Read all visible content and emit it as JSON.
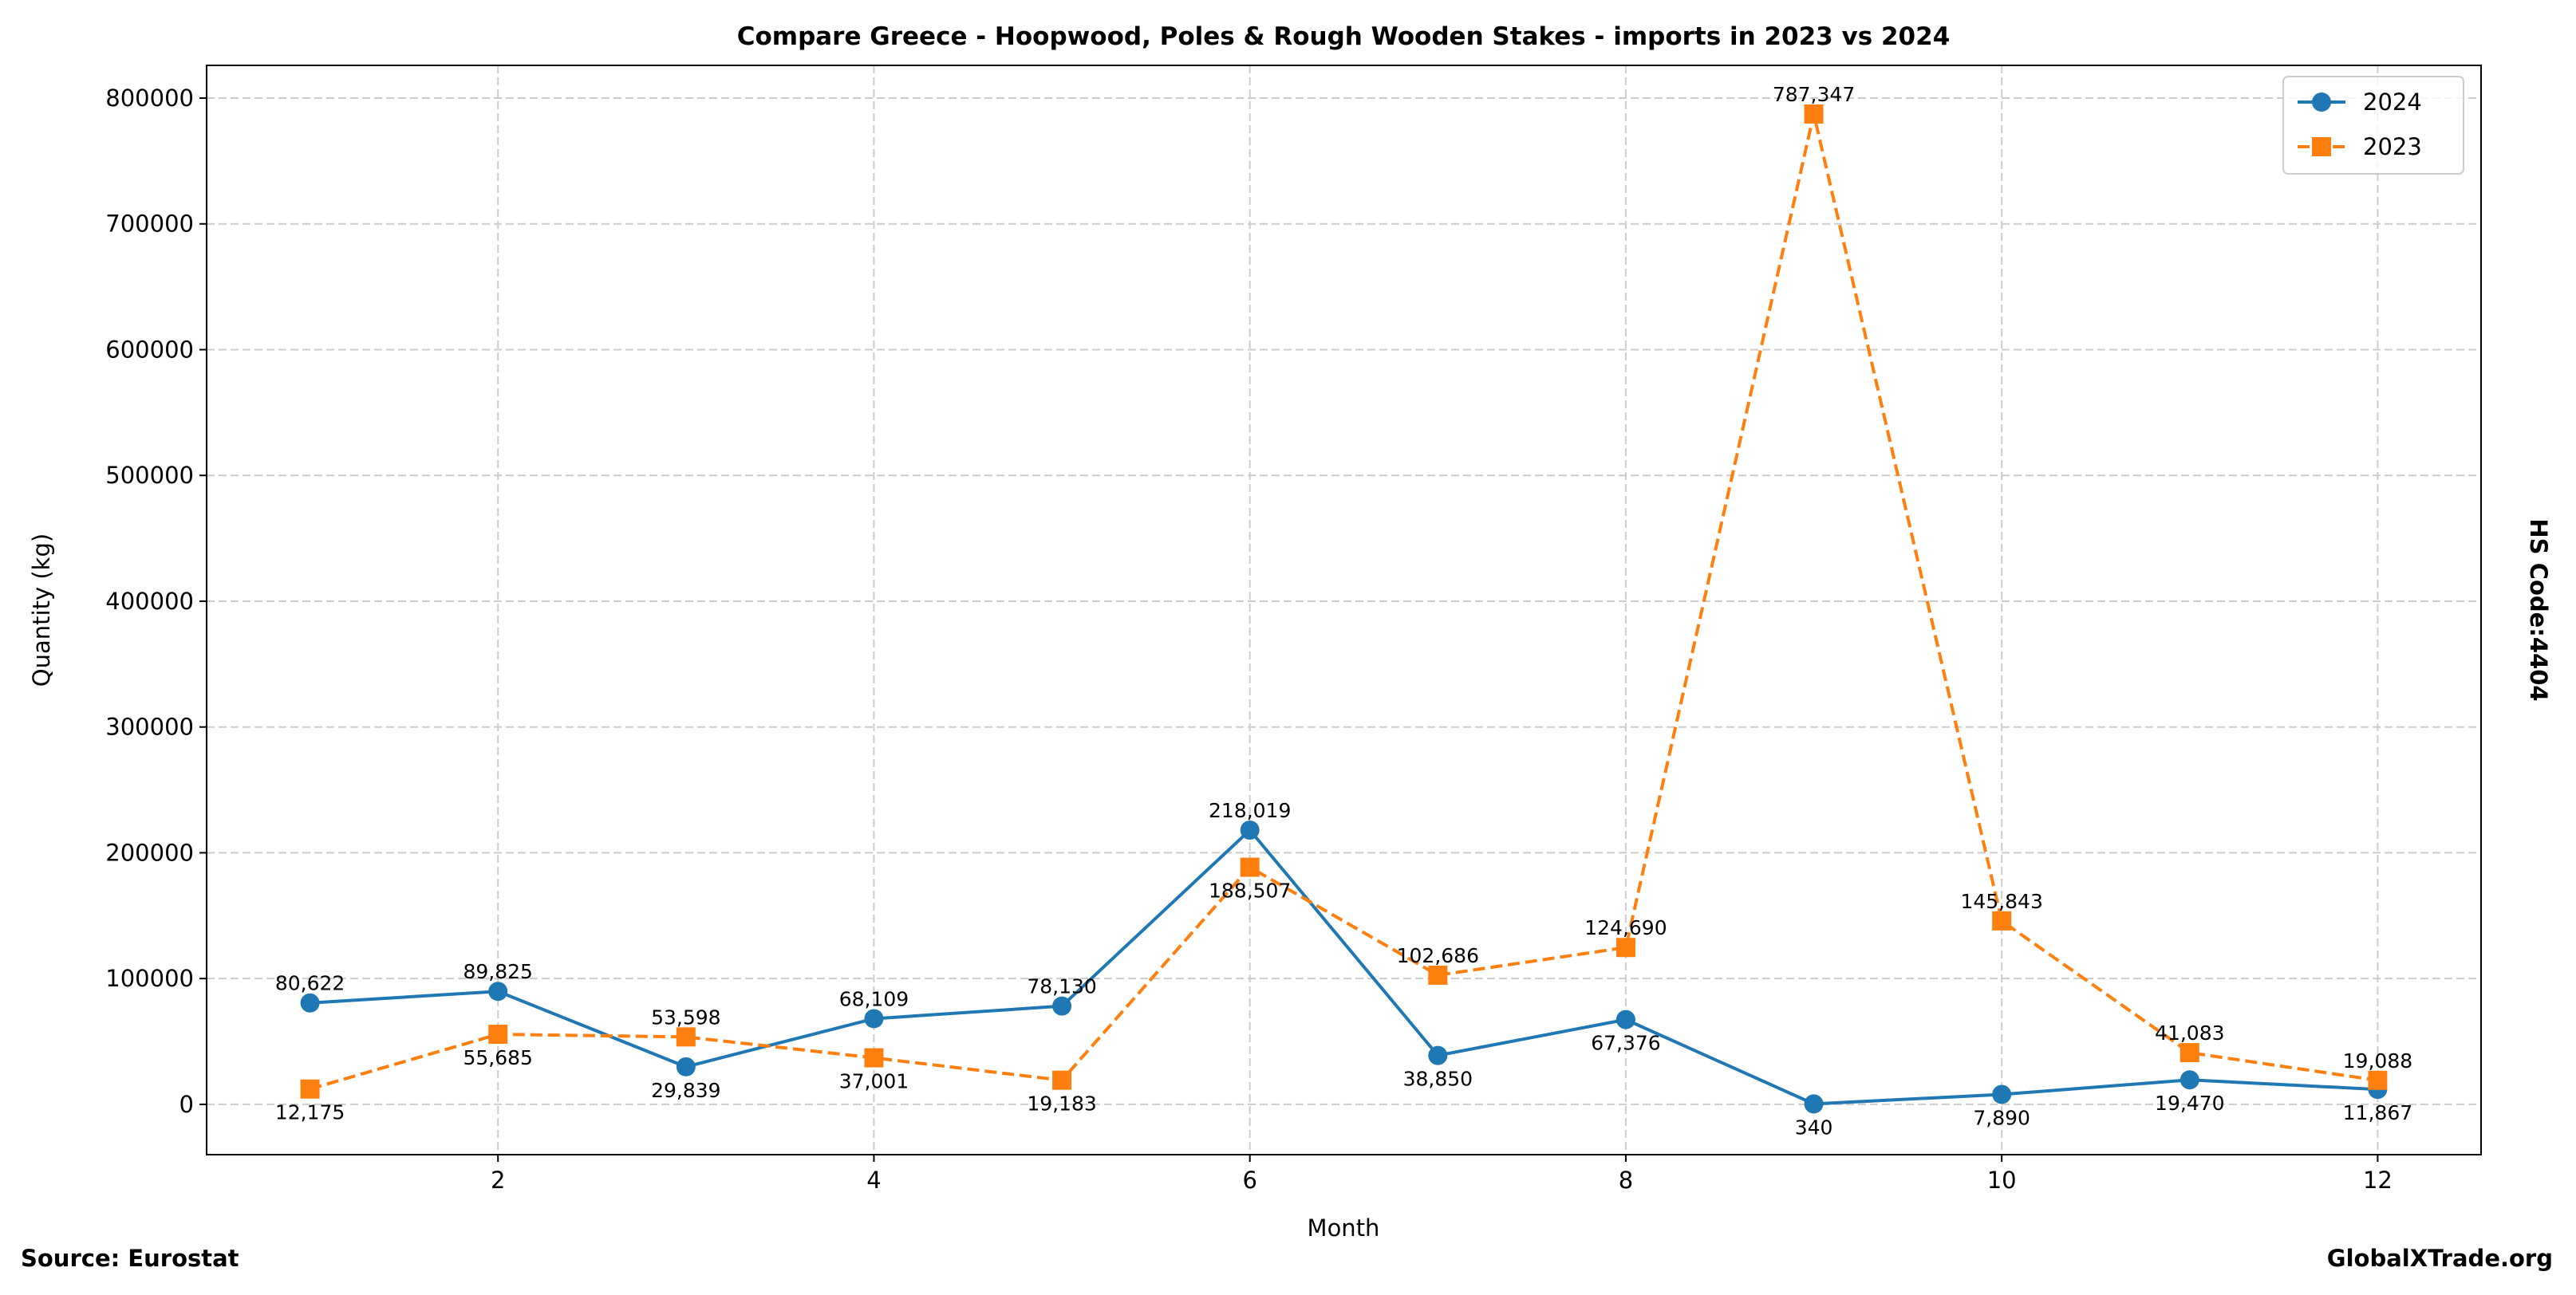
{
  "chart_data": {
    "type": "line",
    "title": "Compare Greece - Hoopwood, Poles & Rough Wooden Stakes - imports in 2023 vs 2024",
    "xlabel": "Month",
    "ylabel": "Quantity (kg)",
    "right_label": "HS Code:4404",
    "source": "Source: Eurostat",
    "brand": "GlobalXTrade.org",
    "xlim": [
      0.45,
      12.55
    ],
    "ylim": [
      -40000,
      826000
    ],
    "xticks": [
      2,
      4,
      6,
      8,
      10,
      12
    ],
    "yticks": [
      0,
      100000,
      200000,
      300000,
      400000,
      500000,
      600000,
      700000,
      800000
    ],
    "grid": true,
    "legend_position": "top-right",
    "x": [
      1,
      2,
      3,
      4,
      5,
      6,
      7,
      8,
      9,
      10,
      11,
      12
    ],
    "series": [
      {
        "name": "2024",
        "color": "#1f77b4",
        "marker": "circle",
        "linestyle": "solid",
        "values": [
          80622,
          89825,
          29839,
          68109,
          78130,
          218019,
          38850,
          67376,
          340,
          7890,
          19470,
          11867
        ],
        "labels": [
          "80,622",
          "89,825",
          "29,839",
          "68,109",
          "78,130",
          "218,019",
          "38,850",
          "67,376",
          "340",
          "7,890",
          "19,470",
          "11,867"
        ]
      },
      {
        "name": "2023",
        "color": "#ff7f0e",
        "marker": "square",
        "linestyle": "dashed",
        "values": [
          12175,
          55685,
          53598,
          37001,
          19183,
          188507,
          102686,
          124690,
          787347,
          145843,
          41083,
          19088
        ],
        "labels": [
          "12,175",
          "55,685",
          "53,598",
          "37,001",
          "19,183",
          "188,507",
          "102,686",
          "124,690",
          "787,347",
          "145,843",
          "41,083",
          "19,088"
        ]
      }
    ]
  }
}
